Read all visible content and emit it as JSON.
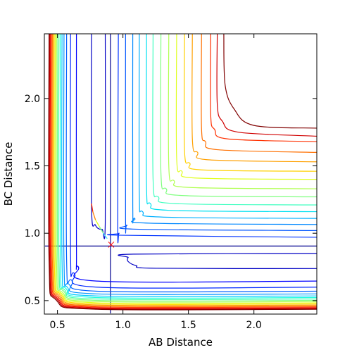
{
  "chart_data": {
    "type": "contour",
    "title": "",
    "xlabel": "AB Distance",
    "ylabel": "BC Distance",
    "xlim": [
      0.4,
      2.48
    ],
    "ylim": [
      0.4,
      2.48
    ],
    "xticks": [
      0.5,
      1.0,
      1.5,
      2.0
    ],
    "xtick_labels": [
      "0.5",
      "1.0",
      "1.5",
      "2.0"
    ],
    "yticks": [
      0.5,
      1.0,
      1.5,
      2.0
    ],
    "ytick_labels": [
      "0.5",
      "1.0",
      "1.5",
      "2.0"
    ],
    "colormap": "jet",
    "contour_lines": [
      {
        "level_index": 0,
        "color": "#00008f",
        "points": [
          [
            0.905,
            0.405
          ],
          [
            0.905,
            2.48
          ]
        ]
      },
      {
        "level_index": 0,
        "color": "#00008f",
        "points": [
          [
            0.405,
            0.905
          ],
          [
            2.48,
            0.905
          ]
        ]
      },
      {
        "level_index": 1,
        "color": "#0000c4",
        "points": [
          [
            0.76,
            2.48
          ],
          [
            0.76,
            1.2
          ],
          [
            0.79,
            1.06
          ],
          [
            0.84,
            1.03
          ],
          [
            0.865,
            1.08
          ],
          [
            0.865,
            2.48
          ]
        ]
      },
      {
        "level_index": 1,
        "color": "#0000c4",
        "points": [
          [
            2.48,
            0.85
          ],
          [
            1.08,
            0.845
          ],
          [
            1.04,
            0.82
          ],
          [
            1.04,
            0.79
          ],
          [
            1.1,
            0.76
          ],
          [
            1.25,
            0.74
          ],
          [
            2.48,
            0.738
          ]
        ]
      },
      {
        "level_index": 2,
        "color": "#0000ff",
        "points": [
          [
            2.48,
            0.645
          ],
          [
            0.8,
            0.645
          ],
          [
            0.66,
            0.75
          ],
          [
            0.645,
            0.9
          ],
          [
            0.645,
            2.48
          ]
        ]
      },
      {
        "level_index": 3,
        "color": "#0027ff",
        "points": [
          [
            2.48,
            0.6
          ],
          [
            0.8,
            0.6
          ],
          [
            0.63,
            0.7
          ],
          [
            0.6,
            0.85
          ],
          [
            0.6,
            2.48
          ]
        ]
      },
      {
        "level_index": 4,
        "color": "#0060ff",
        "points": [
          [
            2.48,
            0.57
          ],
          [
            0.8,
            0.57
          ],
          [
            0.61,
            0.65
          ],
          [
            0.57,
            0.8
          ],
          [
            0.57,
            2.48
          ]
        ]
      },
      {
        "level_index": 5,
        "color": "#0093ff",
        "points": [
          [
            2.48,
            0.55
          ],
          [
            0.8,
            0.55
          ],
          [
            0.59,
            0.62
          ],
          [
            0.55,
            0.8
          ],
          [
            0.55,
            2.48
          ]
        ]
      },
      {
        "level_index": 6,
        "color": "#00c9ff",
        "points": [
          [
            2.48,
            0.535
          ],
          [
            0.8,
            0.535
          ],
          [
            0.575,
            0.6
          ],
          [
            0.535,
            0.8
          ],
          [
            0.535,
            2.48
          ]
        ]
      },
      {
        "level_index": 7,
        "color": "#1cfde0",
        "points": [
          [
            2.48,
            0.523
          ],
          [
            0.8,
            0.523
          ],
          [
            0.565,
            0.59
          ],
          [
            0.523,
            0.8
          ],
          [
            0.523,
            2.48
          ]
        ]
      },
      {
        "level_index": 8,
        "color": "#4dffae",
        "points": [
          [
            2.48,
            0.512
          ],
          [
            0.8,
            0.512
          ],
          [
            0.555,
            0.58
          ],
          [
            0.512,
            0.8
          ],
          [
            0.512,
            2.48
          ]
        ]
      },
      {
        "level_index": 9,
        "color": "#7fff7f",
        "points": [
          [
            2.48,
            0.502
          ],
          [
            0.8,
            0.502
          ],
          [
            0.548,
            0.57
          ],
          [
            0.502,
            0.8
          ],
          [
            0.502,
            2.48
          ]
        ]
      },
      {
        "level_index": 10,
        "color": "#b0ff4d",
        "points": [
          [
            2.48,
            0.493
          ],
          [
            0.8,
            0.493
          ],
          [
            0.54,
            0.56
          ],
          [
            0.493,
            0.8
          ],
          [
            0.493,
            2.48
          ]
        ]
      },
      {
        "level_index": 11,
        "color": "#e2ff1b",
        "points": [
          [
            2.48,
            0.484
          ],
          [
            0.8,
            0.484
          ],
          [
            0.533,
            0.552
          ],
          [
            0.484,
            0.8
          ],
          [
            0.484,
            2.48
          ]
        ]
      },
      {
        "level_index": 12,
        "color": "#ffdb00",
        "points": [
          [
            2.48,
            0.476
          ],
          [
            0.8,
            0.476
          ],
          [
            0.527,
            0.545
          ],
          [
            0.476,
            0.8
          ],
          [
            0.476,
            2.48
          ]
        ]
      },
      {
        "level_index": 13,
        "color": "#ffa700",
        "points": [
          [
            2.48,
            0.468
          ],
          [
            0.8,
            0.468
          ],
          [
            0.52,
            0.538
          ],
          [
            0.468,
            0.8
          ],
          [
            0.468,
            2.48
          ]
        ]
      },
      {
        "level_index": 14,
        "color": "#ff7400",
        "points": [
          [
            2.48,
            0.461
          ],
          [
            0.8,
            0.461
          ],
          [
            0.514,
            0.53
          ],
          [
            0.461,
            0.8
          ],
          [
            0.461,
            2.48
          ]
        ]
      },
      {
        "level_index": 15,
        "color": "#ff4100",
        "points": [
          [
            2.48,
            0.454
          ],
          [
            0.8,
            0.454
          ],
          [
            0.508,
            0.523
          ],
          [
            0.454,
            0.8
          ],
          [
            0.454,
            2.48
          ]
        ]
      },
      {
        "level_index": 16,
        "color": "#f10700",
        "points": [
          [
            2.48,
            0.447
          ],
          [
            0.8,
            0.447
          ],
          [
            0.502,
            0.516
          ],
          [
            0.447,
            0.8
          ],
          [
            0.447,
            2.48
          ]
        ]
      },
      {
        "level_index": 17,
        "color": "#c40000",
        "points": [
          [
            2.48,
            0.441
          ],
          [
            0.8,
            0.441
          ],
          [
            0.496,
            0.51
          ],
          [
            0.441,
            0.8
          ],
          [
            0.441,
            2.48
          ]
        ]
      },
      {
        "level_index": 18,
        "color": "#800000",
        "points": [
          [
            2.48,
            0.436
          ],
          [
            0.8,
            0.436
          ],
          [
            0.49,
            0.504
          ],
          [
            0.436,
            0.8
          ],
          [
            0.436,
            2.48
          ]
        ]
      },
      {
        "level_index": 19,
        "color": "#0033ff",
        "points": [
          [
            2.48,
            0.97
          ],
          [
            1.0,
            0.985
          ],
          [
            0.97,
            1.0
          ],
          [
            0.96,
            1.05
          ],
          [
            0.965,
            2.48
          ]
        ]
      },
      {
        "level_index": 20,
        "color": "#0055ff",
        "points": [
          [
            2.48,
            1.02
          ],
          [
            1.1,
            1.03
          ],
          [
            1.03,
            1.06
          ],
          [
            1.02,
            1.12
          ],
          [
            1.02,
            2.48
          ]
        ]
      },
      {
        "level_index": 21,
        "color": "#0088ff",
        "points": [
          [
            2.48,
            1.065
          ],
          [
            1.2,
            1.075
          ],
          [
            1.09,
            1.11
          ],
          [
            1.075,
            1.2
          ],
          [
            1.075,
            2.48
          ]
        ]
      },
      {
        "level_index": 22,
        "color": "#00b0ff",
        "points": [
          [
            2.48,
            1.11
          ],
          [
            1.3,
            1.12
          ],
          [
            1.15,
            1.16
          ],
          [
            1.125,
            1.3
          ],
          [
            1.125,
            2.48
          ]
        ]
      },
      {
        "level_index": 23,
        "color": "#00e0f0",
        "points": [
          [
            2.48,
            1.16
          ],
          [
            1.35,
            1.17
          ],
          [
            1.21,
            1.22
          ],
          [
            1.18,
            1.35
          ],
          [
            1.18,
            2.48
          ]
        ]
      },
      {
        "level_index": 24,
        "color": "#40ffc0",
        "points": [
          [
            2.48,
            1.21
          ],
          [
            1.4,
            1.22
          ],
          [
            1.27,
            1.27
          ],
          [
            1.23,
            1.4
          ],
          [
            1.23,
            2.48
          ]
        ]
      },
      {
        "level_index": 25,
        "color": "#80ff80",
        "points": [
          [
            2.48,
            1.27
          ],
          [
            1.45,
            1.28
          ],
          [
            1.33,
            1.33
          ],
          [
            1.29,
            1.45
          ],
          [
            1.29,
            2.48
          ]
        ]
      },
      {
        "level_index": 26,
        "color": "#b0ff50",
        "points": [
          [
            2.48,
            1.33
          ],
          [
            1.5,
            1.34
          ],
          [
            1.39,
            1.39
          ],
          [
            1.35,
            1.5
          ],
          [
            1.35,
            2.48
          ]
        ]
      },
      {
        "level_index": 27,
        "color": "#e0ff20",
        "points": [
          [
            2.48,
            1.4
          ],
          [
            1.55,
            1.41
          ],
          [
            1.45,
            1.46
          ],
          [
            1.41,
            1.56
          ],
          [
            1.41,
            2.48
          ]
        ]
      },
      {
        "level_index": 28,
        "color": "#ffd000",
        "points": [
          [
            2.48,
            1.46
          ],
          [
            1.6,
            1.47
          ],
          [
            1.51,
            1.52
          ],
          [
            1.47,
            1.62
          ],
          [
            1.47,
            2.48
          ]
        ]
      },
      {
        "level_index": 29,
        "color": "#ffa000",
        "points": [
          [
            2.48,
            1.53
          ],
          [
            1.65,
            1.545
          ],
          [
            1.57,
            1.6
          ],
          [
            1.53,
            1.7
          ],
          [
            1.53,
            2.48
          ]
        ]
      },
      {
        "level_index": 30,
        "color": "#ff7000",
        "points": [
          [
            2.48,
            1.6
          ],
          [
            1.72,
            1.62
          ],
          [
            1.63,
            1.68
          ],
          [
            1.6,
            1.78
          ],
          [
            1.6,
            2.48
          ]
        ]
      },
      {
        "level_index": 31,
        "color": "#ff3000",
        "points": [
          [
            2.48,
            1.68
          ],
          [
            1.8,
            1.7
          ],
          [
            1.7,
            1.77
          ],
          [
            1.67,
            1.88
          ],
          [
            1.67,
            2.48
          ]
        ]
      },
      {
        "level_index": 32,
        "color": "#d00000",
        "points": [
          [
            2.48,
            1.72
          ],
          [
            1.88,
            1.75
          ],
          [
            1.76,
            1.83
          ],
          [
            1.72,
            1.96
          ],
          [
            1.72,
            2.48
          ]
        ]
      },
      {
        "level_index": 33,
        "color": "#800000",
        "points": [
          [
            2.48,
            1.78
          ],
          [
            2.0,
            1.8
          ],
          [
            1.85,
            1.92
          ],
          [
            1.78,
            2.1
          ],
          [
            1.77,
            2.48
          ]
        ]
      }
    ],
    "trajectory": {
      "name": "",
      "points": [
        [
          0.76,
          1.22
        ],
        [
          0.77,
          1.16
        ],
        [
          0.79,
          1.1
        ],
        [
          0.82,
          1.05
        ],
        [
          0.85,
          1.0
        ],
        [
          0.88,
          0.96
        ]
      ],
      "colors": [
        "#ff3000",
        "#ff8000",
        "#e0ff20",
        "#80ff80",
        "#40e0ff",
        "#40c0ff"
      ]
    },
    "marker": {
      "x": 0.91,
      "y": 0.915,
      "symbol": "x",
      "color": "#ff0000"
    }
  }
}
